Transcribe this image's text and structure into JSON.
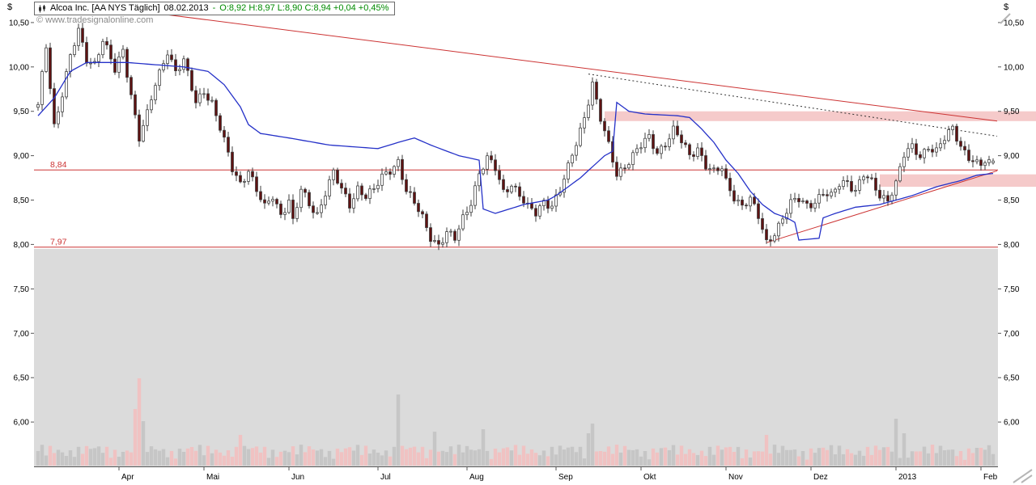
{
  "header": {
    "instrument": "Alcoa Inc. [AA NYS Täglich]",
    "date": "08.02.2013",
    "separator": "-",
    "ohlc": "O:8,92 H:8,97 L:8,90 C:8,94 +0,04 +0,45%"
  },
  "watermark": "© www.tradesignalonline.com",
  "chart_data": {
    "type": "candlestick",
    "instrument": "Alcoa Inc.",
    "symbol": "AA NYS",
    "timeframe": "Täglich",
    "last_quote": {
      "date": "08.02.2013",
      "open": 8.92,
      "high": 8.97,
      "low": 8.9,
      "close": 8.94,
      "change": "+0,04",
      "change_pct": "+0,45%"
    },
    "y_axis": {
      "unit": "$",
      "ticks": [
        {
          "v": 10.5,
          "label": "10,50"
        },
        {
          "v": 10.0,
          "label": "10,00"
        },
        {
          "v": 9.5,
          "label": "9,50"
        },
        {
          "v": 9.0,
          "label": "9,00"
        },
        {
          "v": 8.5,
          "label": "8,50"
        },
        {
          "v": 8.0,
          "label": "8,00"
        },
        {
          "v": 7.5,
          "label": "7,50"
        },
        {
          "v": 7.0,
          "label": "7,00"
        },
        {
          "v": 6.5,
          "label": "6,50"
        },
        {
          "v": 6.0,
          "label": "6,00"
        }
      ]
    },
    "y_range": [
      5.5,
      10.59
    ],
    "x_axis": {
      "ticks": [
        {
          "label": "Apr",
          "i": 20
        },
        {
          "label": "Mai",
          "i": 41
        },
        {
          "label": "Jun",
          "i": 62
        },
        {
          "label": "Jul",
          "i": 84
        },
        {
          "label": "Aug",
          "i": 106
        },
        {
          "label": "Sep",
          "i": 128
        },
        {
          "label": "Okt",
          "i": 149
        },
        {
          "label": "Nov",
          "i": 170
        },
        {
          "label": "Dez",
          "i": 191
        },
        {
          "label": "2013",
          "i": 212
        },
        {
          "label": "Feb",
          "i": 233
        }
      ]
    },
    "n_candles": 237,
    "close_anchors": [
      [
        0,
        9.55
      ],
      [
        1,
        9.9
      ],
      [
        2,
        10.25
      ],
      [
        4,
        9.35
      ],
      [
        6,
        9.7
      ],
      [
        8,
        10.1
      ],
      [
        10,
        10.4
      ],
      [
        12,
        10.1
      ],
      [
        14,
        10.05
      ],
      [
        16,
        10.3
      ],
      [
        19,
        9.95
      ],
      [
        21,
        10.2
      ],
      [
        23,
        9.7
      ],
      [
        25,
        9.2
      ],
      [
        27,
        9.45
      ],
      [
        29,
        9.8
      ],
      [
        32,
        10.2
      ],
      [
        34,
        9.95
      ],
      [
        36,
        10.05
      ],
      [
        39,
        9.6
      ],
      [
        41,
        9.75
      ],
      [
        43,
        9.6
      ],
      [
        45,
        9.3
      ],
      [
        48,
        8.85
      ],
      [
        50,
        8.7
      ],
      [
        52,
        8.85
      ],
      [
        54,
        8.6
      ],
      [
        56,
        8.4
      ],
      [
        58,
        8.55
      ],
      [
        60,
        8.35
      ],
      [
        62,
        8.5
      ],
      [
        63,
        8.25
      ],
      [
        65,
        8.6
      ],
      [
        67,
        8.45
      ],
      [
        69,
        8.35
      ],
      [
        71,
        8.6
      ],
      [
        73,
        8.8
      ],
      [
        75,
        8.6
      ],
      [
        77,
        8.45
      ],
      [
        79,
        8.65
      ],
      [
        81,
        8.55
      ],
      [
        83,
        8.6
      ],
      [
        85,
        8.75
      ],
      [
        87,
        8.85
      ],
      [
        89,
        8.95
      ],
      [
        91,
        8.6
      ],
      [
        93,
        8.45
      ],
      [
        95,
        8.3
      ],
      [
        97,
        8.1
      ],
      [
        99,
        8.0
      ],
      [
        101,
        8.12
      ],
      [
        103,
        8.05
      ],
      [
        105,
        8.3
      ],
      [
        107,
        8.5
      ],
      [
        109,
        8.8
      ],
      [
        111,
        8.95
      ],
      [
        113,
        8.85
      ],
      [
        115,
        8.6
      ],
      [
        117,
        8.7
      ],
      [
        119,
        8.55
      ],
      [
        121,
        8.4
      ],
      [
        123,
        8.35
      ],
      [
        125,
        8.5
      ],
      [
        127,
        8.45
      ],
      [
        129,
        8.6
      ],
      [
        131,
        8.85
      ],
      [
        133,
        9.15
      ],
      [
        135,
        9.45
      ],
      [
        137,
        9.82
      ],
      [
        138,
        9.6
      ],
      [
        139,
        9.4
      ],
      [
        141,
        9.1
      ],
      [
        143,
        8.8
      ],
      [
        145,
        8.9
      ],
      [
        147,
        9.0
      ],
      [
        149,
        9.1
      ],
      [
        151,
        9.2
      ],
      [
        153,
        9.05
      ],
      [
        155,
        9.15
      ],
      [
        157,
        9.28
      ],
      [
        159,
        9.15
      ],
      [
        161,
        9.0
      ],
      [
        163,
        9.1
      ],
      [
        165,
        8.9
      ],
      [
        167,
        8.8
      ],
      [
        169,
        8.85
      ],
      [
        170,
        8.7
      ],
      [
        172,
        8.55
      ],
      [
        174,
        8.45
      ],
      [
        176,
        8.5
      ],
      [
        178,
        8.3
      ],
      [
        180,
        8.02
      ],
      [
        182,
        8.15
      ],
      [
        184,
        8.3
      ],
      [
        186,
        8.45
      ],
      [
        188,
        8.5
      ],
      [
        190,
        8.45
      ],
      [
        192,
        8.5
      ],
      [
        194,
        8.58
      ],
      [
        196,
        8.52
      ],
      [
        198,
        8.68
      ],
      [
        200,
        8.72
      ],
      [
        202,
        8.62
      ],
      [
        204,
        8.78
      ],
      [
        206,
        8.68
      ],
      [
        208,
        8.55
      ],
      [
        210,
        8.52
      ],
      [
        211,
        8.62
      ],
      [
        212,
        8.7
      ],
      [
        213,
        8.85
      ],
      [
        214,
        9.0
      ],
      [
        216,
        9.08
      ],
      [
        218,
        9.0
      ],
      [
        220,
        9.12
      ],
      [
        222,
        9.05
      ],
      [
        224,
        9.18
      ],
      [
        226,
        9.3
      ],
      [
        228,
        9.12
      ],
      [
        230,
        9.0
      ],
      [
        232,
        8.9
      ],
      [
        233,
        8.88
      ],
      [
        234,
        8.92
      ],
      [
        235,
        8.9
      ],
      [
        236,
        8.94
      ]
    ],
    "ma_anchors": [
      [
        0,
        9.45
      ],
      [
        4,
        9.65
      ],
      [
        8,
        9.95
      ],
      [
        12,
        10.05
      ],
      [
        22,
        10.05
      ],
      [
        36,
        10.0
      ],
      [
        42,
        9.95
      ],
      [
        46,
        9.8
      ],
      [
        50,
        9.55
      ],
      [
        52,
        9.35
      ],
      [
        55,
        9.25
      ],
      [
        62,
        9.2
      ],
      [
        72,
        9.12
      ],
      [
        84,
        9.08
      ],
      [
        89,
        9.15
      ],
      [
        93,
        9.2
      ],
      [
        97,
        9.12
      ],
      [
        104,
        9.0
      ],
      [
        109,
        8.95
      ],
      [
        110,
        8.4
      ],
      [
        113,
        8.35
      ],
      [
        120,
        8.45
      ],
      [
        126,
        8.5
      ],
      [
        128,
        8.55
      ],
      [
        134,
        8.75
      ],
      [
        140,
        9.0
      ],
      [
        142,
        9.05
      ],
      [
        143,
        9.6
      ],
      [
        146,
        9.5
      ],
      [
        150,
        9.47
      ],
      [
        158,
        9.45
      ],
      [
        161,
        9.43
      ],
      [
        164,
        9.3
      ],
      [
        167,
        9.15
      ],
      [
        170,
        8.95
      ],
      [
        173,
        8.8
      ],
      [
        176,
        8.6
      ],
      [
        179,
        8.45
      ],
      [
        182,
        8.35
      ],
      [
        185,
        8.3
      ],
      [
        187,
        8.25
      ],
      [
        188,
        8.05
      ],
      [
        193,
        8.07
      ],
      [
        194,
        8.3
      ],
      [
        197,
        8.35
      ],
      [
        202,
        8.42
      ],
      [
        208,
        8.45
      ],
      [
        212,
        8.5
      ],
      [
        216,
        8.55
      ],
      [
        222,
        8.65
      ],
      [
        228,
        8.72
      ],
      [
        232,
        8.78
      ],
      [
        236,
        8.8
      ]
    ],
    "levels": [
      {
        "price": 8.84,
        "label": "8,84"
      },
      {
        "price": 7.97,
        "label": "7,97"
      }
    ],
    "trend_lines": [
      {
        "name": "long-descending-resistance-line",
        "style": "solid",
        "from": [
          23,
          10.64
        ],
        "to": [
          237,
          9.39
        ]
      },
      {
        "name": "ascending-support-line",
        "style": "solid",
        "from": [
          180,
          8.02
        ],
        "to": [
          237,
          8.83
        ]
      },
      {
        "name": "descending-dotted-line",
        "style": "dotted",
        "from": [
          136,
          9.92
        ],
        "to": [
          237,
          9.22
        ]
      }
    ],
    "zones": [
      {
        "name": "resistance-zone-945",
        "from_i": 140,
        "top": 9.5,
        "bottom": 9.39
      },
      {
        "name": "support-zone-872",
        "from_i": 208,
        "top": 8.79,
        "bottom": 8.65
      }
    ],
    "volume_spikes": [
      [
        24,
        70
      ],
      [
        25,
        108
      ],
      [
        26,
        55
      ],
      [
        50,
        38
      ],
      [
        89,
        88
      ],
      [
        98,
        42
      ],
      [
        110,
        45
      ],
      [
        136,
        40
      ],
      [
        137,
        52
      ],
      [
        180,
        38
      ],
      [
        212,
        58
      ],
      [
        214,
        40
      ]
    ],
    "colors": {
      "up_body": "#ffffff",
      "down_body": "#5e1212",
      "candle_stroke": "#3d3d3d",
      "wick": "#3d3d3d",
      "ma_line": "#2531c8",
      "level_line": "#cc3333",
      "trend_line": "#cc3333",
      "dotted_line": "#333333",
      "zone_fill": "rgba(235,150,150,0.5)",
      "volume_up": "#c6c6c6",
      "volume_down": "#f0c2c2",
      "lower_panel_bg": "#dbdbdb",
      "axis_text": "#000000",
      "title_green": "#008a00"
    }
  }
}
